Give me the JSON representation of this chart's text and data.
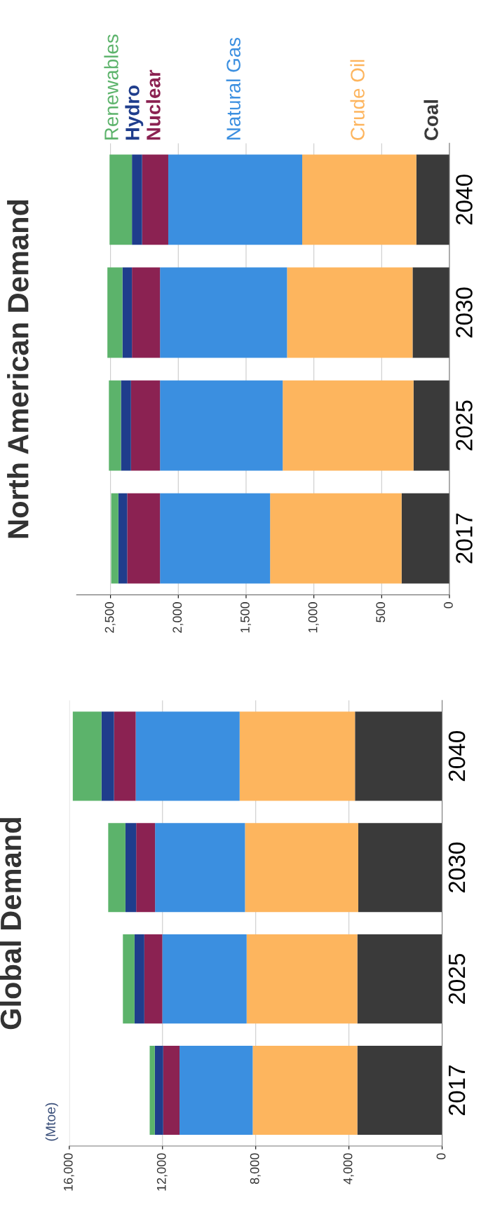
{
  "chart_data": [
    {
      "type": "bar",
      "title": "North American Demand",
      "orientation": "horizontal",
      "stacked": true,
      "legend": "top",
      "grid": "x",
      "categories": [
        "2040",
        "2030",
        "2025",
        "2017"
      ],
      "xlim": [
        2750,
        0
      ],
      "xticks": [
        {
          "value": 2500,
          "label": "2,500"
        },
        {
          "value": 2000,
          "label": "2,000"
        },
        {
          "value": 1500,
          "label": "1,500"
        },
        {
          "value": 1000,
          "label": "1,000"
        },
        {
          "value": 500,
          "label": "500"
        },
        0
      ],
      "series": [
        {
          "name": "Coal",
          "color": "#3a3a3a",
          "values": [
            244,
            272,
            265,
            353
          ]
        },
        {
          "name": "Crude Oil",
          "color": "#fdb55e",
          "values": [
            842,
            926,
            965,
            970
          ]
        },
        {
          "name": "Natural Gas",
          "color": "#3b8fe0",
          "values": [
            988,
            937,
            905,
            812
          ]
        },
        {
          "name": "Nuclear",
          "color": "#8b2252",
          "values": [
            193,
            207,
            214,
            242
          ]
        },
        {
          "name": "Hydro",
          "color": "#1f3d8c",
          "values": [
            75,
            70,
            74,
            65
          ]
        },
        {
          "name": "Renewables",
          "color": "#5cb36b",
          "values": [
            165,
            111,
            89,
            53
          ]
        }
      ]
    },
    {
      "type": "bar",
      "title": "Global Demand",
      "ylabel": "(Mtoe)",
      "orientation": "horizontal",
      "stacked": true,
      "grid": "x",
      "categories": [
        "2040",
        "2030",
        "2025",
        "2017"
      ],
      "xlim": [
        16000,
        0
      ],
      "xticks": [
        {
          "value": 16000,
          "label": "16,000"
        },
        {
          "value": 12000,
          "label": "12,000"
        },
        {
          "value": 8000,
          "label": "8,000"
        },
        {
          "value": 4000,
          "label": "4,000"
        },
        0
      ],
      "series": [
        {
          "color": "#3a3a3a",
          "values": [
            3740,
            3600,
            3640,
            3640
          ]
        },
        {
          "color": "#fdb55e",
          "values": [
            4950,
            4860,
            4750,
            4490
          ]
        },
        {
          "color": "#3b8fe0",
          "values": [
            4460,
            3860,
            3620,
            3140
          ]
        },
        {
          "color": "#8b2252",
          "values": [
            930,
            810,
            770,
            700
          ]
        },
        {
          "color": "#1f3d8c",
          "values": [
            540,
            460,
            420,
            360
          ]
        },
        {
          "color": "#5cb36b",
          "values": [
            1230,
            740,
            500,
            220
          ]
        }
      ]
    }
  ]
}
